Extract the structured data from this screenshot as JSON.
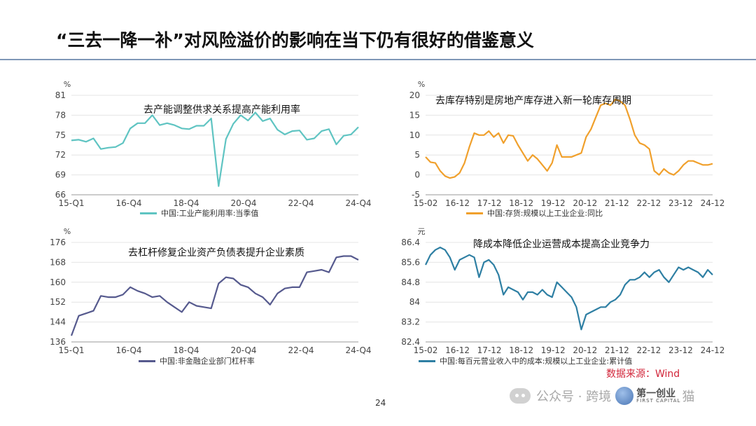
{
  "page": {
    "title": "“三去一降一补”对风险溢价的影响在当下仍有很好的借鉴意义",
    "source": "数据来源：Wind",
    "page_number": "24",
    "watermark": {
      "text": "公众号 · 跨境人老猫",
      "text_before_logo": "公众号 · 跨境",
      "logo_cn": "第一创业",
      "logo_en": "FIRST CAPITAL",
      "text_after_logo": "猫"
    },
    "colors": {
      "title_rule": "#7f97b7",
      "source": "#d2263a"
    }
  },
  "chart_data": [
    {
      "type": "line",
      "annotation": "去产能调整供求关系提高产能利用率",
      "unit": "%",
      "series": [
        {
          "name": "中国:工业产能利用率:当季值",
          "color": "#5fc4c2"
        }
      ],
      "ylim": [
        66,
        81
      ],
      "yticks": [
        "81",
        "78",
        "75",
        "72",
        "69",
        "66"
      ],
      "xticks": [
        "15-Q1",
        "16-Q4",
        "18-Q4",
        "20-Q4",
        "22-Q4",
        "24-Q4"
      ],
      "x": [
        "15-Q1",
        "15-Q2",
        "15-Q3",
        "15-Q4",
        "16-Q1",
        "16-Q2",
        "16-Q3",
        "16-Q4",
        "17-Q1",
        "17-Q2",
        "17-Q3",
        "17-Q4",
        "18-Q1",
        "18-Q2",
        "18-Q3",
        "18-Q4",
        "19-Q1",
        "19-Q2",
        "19-Q3",
        "19-Q4",
        "20-Q1",
        "20-Q2",
        "20-Q3",
        "20-Q4",
        "21-Q1",
        "21-Q2",
        "21-Q3",
        "21-Q4",
        "22-Q1",
        "22-Q2",
        "22-Q3",
        "22-Q4",
        "23-Q1",
        "23-Q2",
        "23-Q3",
        "23-Q4",
        "24-Q1",
        "24-Q2",
        "24-Q3",
        "24-Q4"
      ],
      "values": [
        74.2,
        74.3,
        74.0,
        74.5,
        72.9,
        73.1,
        73.2,
        73.8,
        76.0,
        76.8,
        76.8,
        78.0,
        76.5,
        76.8,
        76.5,
        76.0,
        75.9,
        76.4,
        76.4,
        77.5,
        67.3,
        74.4,
        76.7,
        78.0,
        77.2,
        78.4,
        77.1,
        77.5,
        75.8,
        75.1,
        75.6,
        75.7,
        74.3,
        74.5,
        75.6,
        75.9,
        73.6,
        74.9,
        75.1,
        76.2
      ]
    },
    {
      "type": "line",
      "annotation": "去库存特别是房地产库存进入新一轮库存周期",
      "unit": "%",
      "series": [
        {
          "name": "中国:存货:规模以上工业企业:同比",
          "color": "#f0a02c"
        }
      ],
      "ylim": [
        -5,
        20
      ],
      "yticks": [
        "20",
        "15",
        "10",
        "5",
        "0",
        "-5"
      ],
      "xticks": [
        "15-02",
        "16-12",
        "17-12",
        "18-12",
        "19-12",
        "20-12",
        "21-12",
        "22-12",
        "23-12",
        "24-12"
      ],
      "x": [
        2015.08,
        2015.25,
        2015.42,
        2015.58,
        2015.75,
        2015.92,
        2016.08,
        2016.25,
        2016.42,
        2016.58,
        2016.75,
        2016.92,
        2017.08,
        2017.25,
        2017.42,
        2017.58,
        2017.75,
        2017.92,
        2018.08,
        2018.25,
        2018.42,
        2018.58,
        2018.75,
        2018.92,
        2019.08,
        2019.25,
        2019.42,
        2019.58,
        2019.75,
        2019.92,
        2020.08,
        2020.25,
        2020.42,
        2020.58,
        2020.75,
        2020.92,
        2021.08,
        2021.25,
        2021.42,
        2021.58,
        2021.75,
        2021.92,
        2022.08,
        2022.25,
        2022.42,
        2022.58,
        2022.75,
        2022.92,
        2023.08,
        2023.25,
        2023.42,
        2023.58,
        2023.75,
        2023.92,
        2024.08,
        2024.25,
        2024.42,
        2024.58,
        2024.75,
        2024.92
      ],
      "values": [
        4.5,
        3.2,
        3.0,
        1.0,
        -0.3,
        -0.8,
        -0.5,
        0.5,
        3.0,
        7.0,
        10.5,
        10.0,
        10.0,
        11.0,
        9.5,
        10.5,
        8.0,
        10.0,
        9.8,
        7.5,
        5.5,
        3.5,
        5.0,
        4.0,
        2.5,
        1.0,
        3.0,
        7.5,
        4.5,
        4.5,
        4.5,
        5.0,
        5.5,
        9.5,
        11.5,
        14.5,
        17.5,
        18.0,
        17.5,
        19.0,
        18.5,
        17.5,
        14.0,
        10.0,
        8.0,
        7.5,
        6.5,
        1.0,
        0.0,
        1.5,
        0.5,
        0.0,
        1.0,
        2.5,
        3.5,
        3.5,
        3.0,
        2.5,
        2.5,
        2.8
      ]
    },
    {
      "type": "line",
      "annotation": "去杠杆修复企业资产负债表提升企业素质",
      "unit": "%",
      "series": [
        {
          "name": "中国:非金融企业部门杠杆率",
          "color": "#565a8e"
        }
      ],
      "ylim": [
        136,
        176
      ],
      "yticks": [
        "176",
        "168",
        "160",
        "152",
        "144",
        "136"
      ],
      "xticks": [
        "15-Q1",
        "16-Q4",
        "18-Q4",
        "20-Q4",
        "22-Q4",
        "24-Q4"
      ],
      "x": [
        "15-Q1",
        "15-Q2",
        "15-Q3",
        "15-Q4",
        "16-Q1",
        "16-Q2",
        "16-Q3",
        "16-Q4",
        "17-Q1",
        "17-Q2",
        "17-Q3",
        "17-Q4",
        "18-Q1",
        "18-Q2",
        "18-Q3",
        "18-Q4",
        "19-Q1",
        "19-Q2",
        "19-Q3",
        "19-Q4",
        "20-Q1",
        "20-Q2",
        "20-Q3",
        "20-Q4",
        "21-Q1",
        "21-Q2",
        "21-Q3",
        "21-Q4",
        "22-Q1",
        "22-Q2",
        "22-Q3",
        "22-Q4",
        "23-Q1",
        "23-Q2",
        "23-Q3",
        "23-Q4",
        "24-Q1",
        "24-Q2",
        "24-Q3",
        "24-Q4"
      ],
      "values": [
        138.5,
        146.5,
        147.5,
        148.5,
        154.5,
        154.0,
        154.0,
        155.0,
        158.0,
        156.5,
        155.5,
        154.0,
        154.5,
        152.0,
        150.0,
        148.0,
        152.0,
        150.5,
        150.0,
        149.5,
        159.5,
        162.0,
        161.5,
        159.0,
        158.0,
        155.5,
        154.0,
        151.0,
        155.5,
        157.5,
        158.0,
        158.0,
        164.0,
        164.5,
        165.0,
        164.0,
        170.0,
        170.5,
        170.5,
        169.0
      ]
    },
    {
      "type": "line",
      "annotation": "降成本降低企业运营成本提高企业竞争力",
      "unit": "元",
      "series": [
        {
          "name": "中国:每百元营业收入中的成本:规模以上工业企业:累计值",
          "color": "#2e7fa3"
        }
      ],
      "ylim": [
        82.4,
        86.4
      ],
      "yticks": [
        "86.4",
        "85.6",
        "84.8",
        "84",
        "83.2",
        "82.4"
      ],
      "xticks": [
        "15-02",
        "16-12",
        "17-12",
        "18-12",
        "19-12",
        "20-12",
        "21-12",
        "22-12",
        "23-12",
        "24-12"
      ],
      "x": [
        2015.08,
        2015.25,
        2015.42,
        2015.58,
        2015.75,
        2015.92,
        2016.08,
        2016.25,
        2016.42,
        2016.58,
        2016.75,
        2016.92,
        2017.08,
        2017.25,
        2017.42,
        2017.58,
        2017.75,
        2017.92,
        2018.08,
        2018.25,
        2018.42,
        2018.58,
        2018.75,
        2018.92,
        2019.08,
        2019.25,
        2019.42,
        2019.58,
        2019.75,
        2019.92,
        2020.08,
        2020.25,
        2020.42,
        2020.58,
        2020.75,
        2020.92,
        2021.08,
        2021.25,
        2021.42,
        2021.58,
        2021.75,
        2021.92,
        2022.08,
        2022.25,
        2022.42,
        2022.58,
        2022.75,
        2022.92,
        2023.08,
        2023.25,
        2023.42,
        2023.58,
        2023.75,
        2023.92,
        2024.08,
        2024.25,
        2024.42,
        2024.58,
        2024.75,
        2024.92
      ],
      "values": [
        85.5,
        85.9,
        86.1,
        86.2,
        86.1,
        85.8,
        85.3,
        85.7,
        85.8,
        85.9,
        85.8,
        85.0,
        85.6,
        85.7,
        85.5,
        85.1,
        84.3,
        84.6,
        84.5,
        84.4,
        84.1,
        84.4,
        84.4,
        84.3,
        84.5,
        84.3,
        84.2,
        84.8,
        84.6,
        84.4,
        84.2,
        83.8,
        82.9,
        83.5,
        83.6,
        83.7,
        83.8,
        83.8,
        84.0,
        84.1,
        84.3,
        84.7,
        84.9,
        84.9,
        85.0,
        85.2,
        85.0,
        85.2,
        85.3,
        85.0,
        84.8,
        85.1,
        85.4,
        85.3,
        85.4,
        85.3,
        85.2,
        85.0,
        85.3,
        85.1
      ]
    }
  ]
}
